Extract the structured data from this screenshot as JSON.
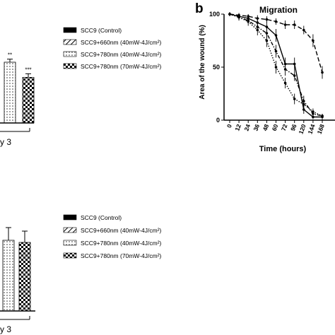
{
  "figure": {
    "panel_b_label": "b",
    "top_day_label": "y 3",
    "bottom_day_label": "y 3"
  },
  "legend_top": {
    "entries": [
      {
        "label": "SCC9 (Control)",
        "pattern": "solid"
      },
      {
        "label": "SCC9+660nm (40mW-4J/cm²)",
        "pattern": "hatch"
      },
      {
        "label": "SCC9+780nm (40mW-4J/cm²)",
        "pattern": "dots"
      },
      {
        "label": "SCC9+780nm (70mW-4J/cm²)",
        "pattern": "check"
      }
    ]
  },
  "legend_bottom": {
    "entries": [
      {
        "label": "SCC9 (Control)",
        "pattern": "solid"
      },
      {
        "label": "SCC9+660nm (40mW-4J/cm²)",
        "pattern": "hatch"
      },
      {
        "label": "SCC9+780nm (40mW-4J/cm²)",
        "pattern": "dots"
      },
      {
        "label": "SCC9+780nm (70mW-4J/cm²)",
        "pattern": "check"
      }
    ]
  },
  "chart_data": [
    {
      "type": "bar",
      "panel": "top-left (partially visible)",
      "categories": [
        "SCC9+780nm (40mW-4J/cm²)",
        "SCC9+780nm (70mW-4J/cm²)"
      ],
      "values": [
        1.0,
        0.75
      ],
      "errors": [
        0.05,
        0.06
      ],
      "significance": [
        "**",
        "***"
      ],
      "xlabel": "",
      "ylabel": ""
    },
    {
      "type": "line",
      "panel": "b",
      "title": "Migration",
      "xlabel": "Time (hours)",
      "ylabel": "Area of the wound (%)",
      "x_ticks": [
        "0",
        "12",
        "24",
        "36",
        "48",
        "60",
        "72",
        "96",
        "120",
        "144",
        "168"
      ],
      "y_ticks": [
        "0",
        "50",
        "100"
      ],
      "ylim": [
        0,
        100
      ],
      "series": [
        {
          "name": "SCC9 (Control)",
          "style": "solid",
          "values": [
            100,
            98,
            96,
            92,
            88,
            80,
            53,
            53,
            10,
            3,
            3
          ],
          "errors": [
            2,
            3,
            3,
            4,
            5,
            6,
            6,
            6,
            4,
            2,
            3
          ]
        },
        {
          "name": "SCC9+660nm (40mW-4J/cm²)",
          "style": "dashed",
          "values": [
            100,
            99,
            98,
            96,
            95,
            93,
            90,
            90,
            85,
            75,
            45
          ],
          "errors": [
            2,
            2,
            2,
            3,
            3,
            3,
            4,
            4,
            4,
            6,
            6
          ]
        },
        {
          "name": "SCC9+780nm (40mW-4J/cm²)",
          "style": "dotted",
          "values": [
            100,
            97,
            93,
            85,
            75,
            50,
            35,
            20,
            15,
            8,
            4
          ],
          "errors": [
            2,
            3,
            4,
            5,
            6,
            6,
            5,
            5,
            4,
            3,
            2
          ]
        },
        {
          "name": "SCC9+780nm (70mW-4J/cm²)",
          "style": "dashdot",
          "values": [
            100,
            97,
            94,
            88,
            82,
            65,
            48,
            42,
            18,
            6,
            4
          ],
          "errors": [
            2,
            3,
            3,
            4,
            5,
            6,
            6,
            5,
            5,
            3,
            2
          ]
        }
      ]
    },
    {
      "type": "bar",
      "panel": "bottom-left (partially visible)",
      "categories": [
        "SCC9+780nm (40mW-4J/cm²)",
        "SCC9+780nm (70mW-4J/cm²)"
      ],
      "values": [
        1.0,
        0.97
      ],
      "errors": [
        0.18,
        0.16
      ],
      "xlabel": "",
      "ylabel": ""
    }
  ]
}
